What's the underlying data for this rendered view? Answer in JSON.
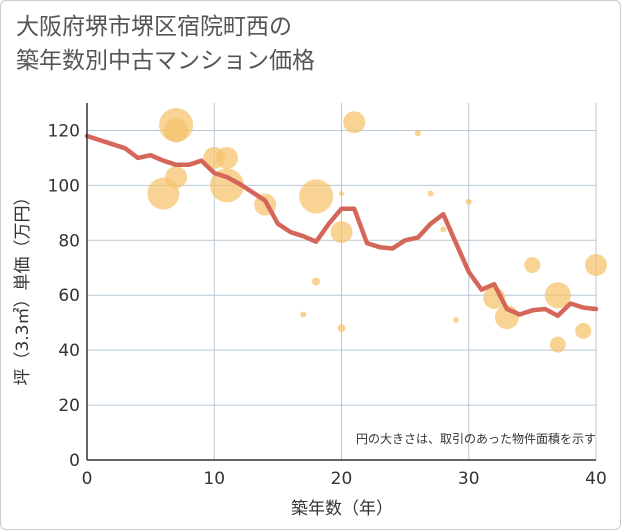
{
  "chart_data": {
    "type": "scatter",
    "title": "大阪府堺市堺区宿院町西の\n築年数別中古マンション価格",
    "xlabel": "築年数（年）",
    "ylabel": "坪（3.3㎡）単価（万円）",
    "xlim": [
      0,
      40
    ],
    "ylim": [
      0,
      130
    ],
    "xticks": [
      "0",
      "10",
      "20",
      "30",
      "40"
    ],
    "yticks": [
      "0",
      "20",
      "40",
      "60",
      "80",
      "100",
      "120"
    ],
    "grid": true,
    "annotation": "円の大きさは、取引のあった物件面積を示す",
    "colors": {
      "bubble": "#f5c26b",
      "line": "#d4665a",
      "grid": "#b7c9d6",
      "axis": "#333333"
    },
    "scatter_points": [
      {
        "x": 6,
        "y": 97,
        "size": 3.2
      },
      {
        "x": 7,
        "y": 122,
        "size": 3.4
      },
      {
        "x": 7,
        "y": 120,
        "size": 2.4
      },
      {
        "x": 7,
        "y": 103,
        "size": 2.2
      },
      {
        "x": 10,
        "y": 110,
        "size": 2.2
      },
      {
        "x": 11,
        "y": 110,
        "size": 2.2
      },
      {
        "x": 11,
        "y": 100,
        "size": 3.4
      },
      {
        "x": 14,
        "y": 93,
        "size": 2.2
      },
      {
        "x": 17,
        "y": 53,
        "size": 0.6
      },
      {
        "x": 18,
        "y": 65,
        "size": 0.8
      },
      {
        "x": 18,
        "y": 96,
        "size": 3.4
      },
      {
        "x": 20,
        "y": 97,
        "size": 0.4
      },
      {
        "x": 20,
        "y": 83,
        "size": 2.2
      },
      {
        "x": 20,
        "y": 48,
        "size": 0.8
      },
      {
        "x": 21,
        "y": 123,
        "size": 2.2
      },
      {
        "x": 26,
        "y": 119,
        "size": 0.6
      },
      {
        "x": 27,
        "y": 97,
        "size": 0.6
      },
      {
        "x": 28,
        "y": 84,
        "size": 0.6
      },
      {
        "x": 29,
        "y": 51,
        "size": 0.6
      },
      {
        "x": 30,
        "y": 94,
        "size": 0.6
      },
      {
        "x": 32,
        "y": 59,
        "size": 2.2
      },
      {
        "x": 33,
        "y": 52,
        "size": 2.4
      },
      {
        "x": 35,
        "y": 71,
        "size": 1.6
      },
      {
        "x": 37,
        "y": 60,
        "size": 2.6
      },
      {
        "x": 37,
        "y": 42,
        "size": 1.6
      },
      {
        "x": 39,
        "y": 47,
        "size": 1.6
      },
      {
        "x": 40,
        "y": 71,
        "size": 2.2
      }
    ],
    "line_series": {
      "x": [
        0,
        1,
        2,
        3,
        4,
        5,
        6,
        7,
        8,
        9,
        10,
        11,
        12,
        13,
        14,
        15,
        16,
        17,
        18,
        19,
        20,
        21,
        22,
        23,
        24,
        25,
        26,
        27,
        28,
        29,
        30,
        31,
        32,
        33,
        34,
        35,
        36,
        37,
        38,
        39,
        40
      ],
      "y": [
        118,
        116.5,
        115,
        113.5,
        110,
        111,
        109,
        107.5,
        107.5,
        109,
        104.5,
        103,
        100.5,
        97.5,
        94.5,
        86,
        83,
        81.5,
        79.5,
        86,
        91.5,
        91.5,
        79,
        77.5,
        77,
        80,
        81,
        86,
        89.5,
        79,
        68.5,
        62,
        64,
        55,
        53,
        54.5,
        55,
        52.5,
        57,
        55.5,
        55
      ]
    }
  }
}
